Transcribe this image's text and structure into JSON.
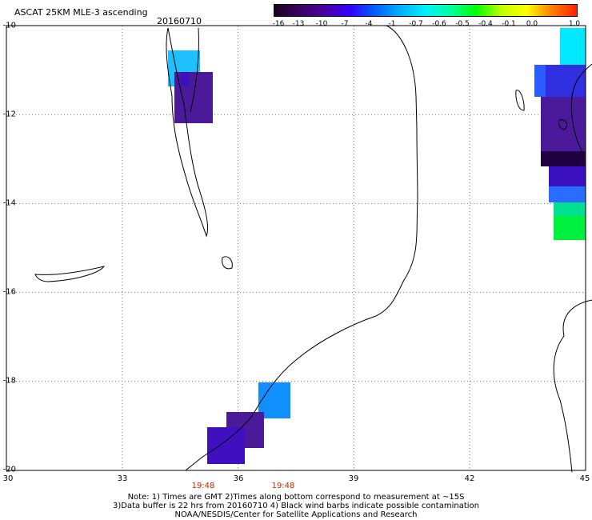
{
  "header": {
    "title": "ASCAT 25KM MLE-3 ascending",
    "date": "20160710"
  },
  "colorbar": {
    "labels": [
      "-16",
      "-13",
      "-10",
      "-7",
      "-4",
      "-1",
      "-0.7",
      "-0.6",
      "-0.5",
      "-0.4",
      "-0.1",
      "0.0",
      "1.0"
    ],
    "colors": [
      "#1a0020",
      "#3b0060",
      "#4a00a0",
      "#3000ff",
      "#0060ff",
      "#00b0ff",
      "#00f0ff",
      "#00ffa0",
      "#00ff00",
      "#c0ff00",
      "#ffff00",
      "#ff8000",
      "#ff2000"
    ]
  },
  "axes": {
    "lat_labels": [
      "-10",
      "-12",
      "-14",
      "-16",
      "-18",
      "-20"
    ],
    "lon_labels": [
      "30",
      "33",
      "36",
      "39",
      "42",
      "45"
    ],
    "lat_range": [
      -20,
      -10
    ],
    "lon_range": [
      30,
      45
    ],
    "grid": "dotted"
  },
  "time_labels": [
    "19:48",
    "19:48"
  ],
  "notes": {
    "line1": "Note: 1) Times are GMT 2)Times along bottom correspond to measurement at ~15S",
    "line2": "3)Data buffer is 22 hrs from 20160710 4) Black wind barbs indicate possible contamination",
    "line3": "NOAA/NESDIS/Center for Satellite Applications and Research"
  },
  "colors": {
    "ocean": "#ffffff",
    "coast": "#000000",
    "tick_time": "#cc2200"
  }
}
